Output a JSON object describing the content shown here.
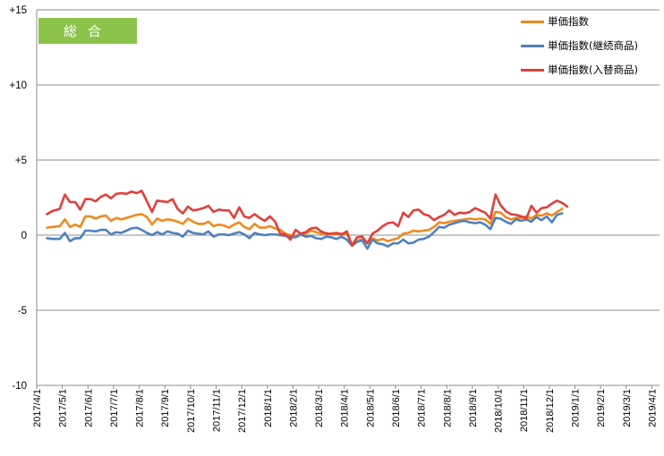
{
  "badge": {
    "text": "総合"
  },
  "chart_data": {
    "type": "line",
    "ylim": [
      -10,
      15
    ],
    "yticks": [
      {
        "value": 15,
        "label": "+15"
      },
      {
        "value": 10,
        "label": "+10"
      },
      {
        "value": 5,
        "label": "+5"
      },
      {
        "value": 0,
        "label": "0"
      },
      {
        "value": -5,
        "label": "-5"
      },
      {
        "value": -10,
        "label": "-10"
      }
    ],
    "grid": "horizontal",
    "legend_position": "top-right",
    "x_labels": [
      "2017/4/1",
      "2017/5/1",
      "2017/6/1",
      "2017/7/1",
      "2017/8/1",
      "2017/9/1",
      "2017/10/1",
      "2017/11/1",
      "2017/12/1",
      "2018/1/1",
      "2018/2/1",
      "2018/3/1",
      "2018/4/1",
      "2018/5/1",
      "2018/6/1",
      "2018/7/1",
      "2018/8/1",
      "2018/9/1",
      "2018/10/1",
      "2018/11/1",
      "2018/12/1",
      "2019/1/1",
      "2019/2/1",
      "2019/3/1",
      "2019/4/1"
    ],
    "x_range": [
      0,
      24.3
    ],
    "series": [
      {
        "name": "単価指数",
        "color": "#f08a1d",
        "points": [
          [
            0.4,
            0.5
          ],
          [
            0.6,
            0.55
          ],
          [
            0.9,
            0.6
          ],
          [
            1.1,
            1.05
          ],
          [
            1.3,
            0.55
          ],
          [
            1.5,
            0.7
          ],
          [
            1.7,
            0.55
          ],
          [
            1.9,
            1.25
          ],
          [
            2.1,
            1.25
          ],
          [
            2.3,
            1.1
          ],
          [
            2.5,
            1.25
          ],
          [
            2.7,
            1.3
          ],
          [
            2.9,
            0.95
          ],
          [
            3.1,
            1.15
          ],
          [
            3.3,
            1.05
          ],
          [
            3.5,
            1.15
          ],
          [
            3.7,
            1.25
          ],
          [
            3.9,
            1.35
          ],
          [
            4.1,
            1.4
          ],
          [
            4.3,
            1.2
          ],
          [
            4.5,
            0.7
          ],
          [
            4.7,
            1.1
          ],
          [
            4.9,
            0.95
          ],
          [
            5.1,
            1.05
          ],
          [
            5.3,
            1.0
          ],
          [
            5.5,
            0.9
          ],
          [
            5.7,
            0.75
          ],
          [
            5.9,
            1.1
          ],
          [
            6.1,
            0.9
          ],
          [
            6.3,
            0.75
          ],
          [
            6.5,
            0.75
          ],
          [
            6.7,
            0.9
          ],
          [
            6.9,
            0.6
          ],
          [
            7.1,
            0.7
          ],
          [
            7.3,
            0.65
          ],
          [
            7.5,
            0.5
          ],
          [
            7.7,
            0.7
          ],
          [
            7.9,
            0.85
          ],
          [
            8.1,
            0.55
          ],
          [
            8.3,
            0.4
          ],
          [
            8.5,
            0.75
          ],
          [
            8.7,
            0.5
          ],
          [
            8.9,
            0.5
          ],
          [
            9.1,
            0.6
          ],
          [
            9.3,
            0.45
          ],
          [
            9.5,
            0.35
          ],
          [
            9.7,
            0.1
          ],
          [
            9.9,
            0.0
          ],
          [
            10.1,
            -0.05
          ],
          [
            10.3,
            0.05
          ],
          [
            10.5,
            0.1
          ],
          [
            10.7,
            0.3
          ],
          [
            10.9,
            0.2
          ],
          [
            11.1,
            0.1
          ],
          [
            11.3,
            0.15
          ],
          [
            11.5,
            0.05
          ],
          [
            11.7,
            0.1
          ],
          [
            11.9,
            0.1
          ],
          [
            12.1,
            0.1
          ],
          [
            12.3,
            -0.6
          ],
          [
            12.5,
            -0.35
          ],
          [
            12.7,
            -0.3
          ],
          [
            12.9,
            -0.55
          ],
          [
            13.1,
            -0.2
          ],
          [
            13.3,
            -0.35
          ],
          [
            13.5,
            -0.25
          ],
          [
            13.7,
            -0.4
          ],
          [
            13.9,
            -0.3
          ],
          [
            14.1,
            -0.2
          ],
          [
            14.3,
            0.1
          ],
          [
            14.5,
            0.15
          ],
          [
            14.7,
            0.3
          ],
          [
            14.9,
            0.25
          ],
          [
            15.1,
            0.3
          ],
          [
            15.3,
            0.35
          ],
          [
            15.5,
            0.55
          ],
          [
            15.7,
            0.85
          ],
          [
            15.9,
            0.8
          ],
          [
            16.1,
            0.9
          ],
          [
            16.3,
            0.95
          ],
          [
            16.5,
            1.0
          ],
          [
            16.7,
            1.05
          ],
          [
            16.9,
            1.1
          ],
          [
            17.1,
            1.05
          ],
          [
            17.3,
            1.1
          ],
          [
            17.5,
            1.05
          ],
          [
            17.7,
            0.75
          ],
          [
            17.9,
            1.55
          ],
          [
            18.1,
            1.5
          ],
          [
            18.3,
            1.2
          ],
          [
            18.5,
            1.05
          ],
          [
            18.7,
            1.15
          ],
          [
            18.9,
            1.15
          ],
          [
            19.1,
            1.25
          ],
          [
            19.3,
            1.1
          ],
          [
            19.5,
            1.35
          ],
          [
            19.7,
            1.3
          ],
          [
            19.9,
            1.45
          ],
          [
            20.1,
            1.3
          ],
          [
            20.3,
            1.55
          ],
          [
            20.5,
            1.75
          ]
        ]
      },
      {
        "name": "単価指数(継続商品)",
        "color": "#4f81bd",
        "points": [
          [
            0.4,
            -0.2
          ],
          [
            0.6,
            -0.25
          ],
          [
            0.9,
            -0.25
          ],
          [
            1.1,
            0.15
          ],
          [
            1.3,
            -0.4
          ],
          [
            1.5,
            -0.2
          ],
          [
            1.7,
            -0.2
          ],
          [
            1.9,
            0.3
          ],
          [
            2.1,
            0.3
          ],
          [
            2.3,
            0.25
          ],
          [
            2.5,
            0.35
          ],
          [
            2.7,
            0.35
          ],
          [
            2.9,
            0.05
          ],
          [
            3.1,
            0.2
          ],
          [
            3.3,
            0.15
          ],
          [
            3.5,
            0.3
          ],
          [
            3.7,
            0.45
          ],
          [
            3.9,
            0.5
          ],
          [
            4.1,
            0.35
          ],
          [
            4.3,
            0.15
          ],
          [
            4.5,
            0.0
          ],
          [
            4.7,
            0.2
          ],
          [
            4.9,
            0.05
          ],
          [
            5.1,
            0.25
          ],
          [
            5.3,
            0.15
          ],
          [
            5.5,
            0.1
          ],
          [
            5.7,
            -0.1
          ],
          [
            5.9,
            0.3
          ],
          [
            6.1,
            0.15
          ],
          [
            6.3,
            0.1
          ],
          [
            6.5,
            0.05
          ],
          [
            6.7,
            0.25
          ],
          [
            6.9,
            -0.1
          ],
          [
            7.1,
            0.05
          ],
          [
            7.3,
            0.05
          ],
          [
            7.5,
            0.0
          ],
          [
            7.7,
            0.1
          ],
          [
            7.9,
            0.2
          ],
          [
            8.1,
            0.05
          ],
          [
            8.3,
            -0.2
          ],
          [
            8.5,
            0.15
          ],
          [
            8.7,
            0.05
          ],
          [
            8.9,
            0.0
          ],
          [
            9.1,
            0.05
          ],
          [
            9.3,
            0.05
          ],
          [
            9.5,
            0.0
          ],
          [
            9.7,
            -0.05
          ],
          [
            9.9,
            -0.1
          ],
          [
            10.1,
            -0.15
          ],
          [
            10.3,
            0.05
          ],
          [
            10.5,
            -0.1
          ],
          [
            10.7,
            -0.05
          ],
          [
            10.9,
            -0.2
          ],
          [
            11.1,
            -0.25
          ],
          [
            11.3,
            -0.1
          ],
          [
            11.5,
            -0.15
          ],
          [
            11.7,
            -0.25
          ],
          [
            11.9,
            -0.1
          ],
          [
            12.1,
            -0.3
          ],
          [
            12.3,
            -0.7
          ],
          [
            12.5,
            -0.45
          ],
          [
            12.7,
            -0.35
          ],
          [
            12.9,
            -0.9
          ],
          [
            13.1,
            -0.3
          ],
          [
            13.3,
            -0.55
          ],
          [
            13.5,
            -0.6
          ],
          [
            13.7,
            -0.75
          ],
          [
            13.9,
            -0.55
          ],
          [
            14.1,
            -0.55
          ],
          [
            14.3,
            -0.3
          ],
          [
            14.5,
            -0.55
          ],
          [
            14.7,
            -0.5
          ],
          [
            14.9,
            -0.3
          ],
          [
            15.1,
            -0.25
          ],
          [
            15.3,
            -0.1
          ],
          [
            15.5,
            0.2
          ],
          [
            15.7,
            0.55
          ],
          [
            15.9,
            0.5
          ],
          [
            16.1,
            0.7
          ],
          [
            16.3,
            0.8
          ],
          [
            16.5,
            0.9
          ],
          [
            16.7,
            0.95
          ],
          [
            16.9,
            0.85
          ],
          [
            17.1,
            0.8
          ],
          [
            17.3,
            0.85
          ],
          [
            17.5,
            0.7
          ],
          [
            17.7,
            0.4
          ],
          [
            17.9,
            1.15
          ],
          [
            18.1,
            1.1
          ],
          [
            18.3,
            0.9
          ],
          [
            18.5,
            0.75
          ],
          [
            18.7,
            1.05
          ],
          [
            18.9,
            0.95
          ],
          [
            19.1,
            1.05
          ],
          [
            19.3,
            0.9
          ],
          [
            19.5,
            1.2
          ],
          [
            19.7,
            1.0
          ],
          [
            19.9,
            1.25
          ],
          [
            20.1,
            0.85
          ],
          [
            20.3,
            1.35
          ],
          [
            20.5,
            1.45
          ]
        ]
      },
      {
        "name": "単価指数(入替商品)",
        "color": "#e0403a",
        "points": [
          [
            0.4,
            1.4
          ],
          [
            0.6,
            1.6
          ],
          [
            0.9,
            1.75
          ],
          [
            1.1,
            2.7
          ],
          [
            1.3,
            2.2
          ],
          [
            1.5,
            2.2
          ],
          [
            1.7,
            1.7
          ],
          [
            1.9,
            2.4
          ],
          [
            2.1,
            2.4
          ],
          [
            2.3,
            2.25
          ],
          [
            2.5,
            2.55
          ],
          [
            2.7,
            2.7
          ],
          [
            2.9,
            2.45
          ],
          [
            3.1,
            2.75
          ],
          [
            3.3,
            2.8
          ],
          [
            3.5,
            2.75
          ],
          [
            3.7,
            2.9
          ],
          [
            3.9,
            2.8
          ],
          [
            4.1,
            2.95
          ],
          [
            4.3,
            2.25
          ],
          [
            4.5,
            1.55
          ],
          [
            4.7,
            2.3
          ],
          [
            4.9,
            2.25
          ],
          [
            5.1,
            2.2
          ],
          [
            5.3,
            2.4
          ],
          [
            5.5,
            1.75
          ],
          [
            5.7,
            1.45
          ],
          [
            5.9,
            1.9
          ],
          [
            6.1,
            1.65
          ],
          [
            6.3,
            1.7
          ],
          [
            6.5,
            1.8
          ],
          [
            6.7,
            1.95
          ],
          [
            6.9,
            1.55
          ],
          [
            7.1,
            1.7
          ],
          [
            7.3,
            1.65
          ],
          [
            7.5,
            1.65
          ],
          [
            7.7,
            1.15
          ],
          [
            7.9,
            1.85
          ],
          [
            8.1,
            1.25
          ],
          [
            8.3,
            1.15
          ],
          [
            8.5,
            1.4
          ],
          [
            8.7,
            1.15
          ],
          [
            8.9,
            0.95
          ],
          [
            9.1,
            1.25
          ],
          [
            9.3,
            0.9
          ],
          [
            9.5,
            0.1
          ],
          [
            9.7,
            0.05
          ],
          [
            9.9,
            -0.3
          ],
          [
            10.1,
            0.35
          ],
          [
            10.3,
            0.1
          ],
          [
            10.5,
            0.2
          ],
          [
            10.7,
            0.45
          ],
          [
            10.9,
            0.5
          ],
          [
            11.1,
            0.25
          ],
          [
            11.3,
            0.1
          ],
          [
            11.5,
            0.1
          ],
          [
            11.7,
            0.15
          ],
          [
            11.9,
            0.05
          ],
          [
            12.1,
            0.25
          ],
          [
            12.3,
            -0.7
          ],
          [
            12.5,
            -0.15
          ],
          [
            12.7,
            -0.1
          ],
          [
            12.9,
            -0.55
          ],
          [
            13.1,
            0.1
          ],
          [
            13.3,
            0.3
          ],
          [
            13.5,
            0.6
          ],
          [
            13.7,
            0.8
          ],
          [
            13.9,
            0.85
          ],
          [
            14.1,
            0.6
          ],
          [
            14.3,
            1.5
          ],
          [
            14.5,
            1.2
          ],
          [
            14.7,
            1.65
          ],
          [
            14.9,
            1.7
          ],
          [
            15.1,
            1.4
          ],
          [
            15.3,
            1.3
          ],
          [
            15.5,
            1.0
          ],
          [
            15.7,
            1.2
          ],
          [
            15.9,
            1.35
          ],
          [
            16.1,
            1.65
          ],
          [
            16.3,
            1.35
          ],
          [
            16.5,
            1.5
          ],
          [
            16.7,
            1.45
          ],
          [
            16.9,
            1.55
          ],
          [
            17.1,
            1.8
          ],
          [
            17.3,
            1.65
          ],
          [
            17.5,
            1.5
          ],
          [
            17.7,
            1.1
          ],
          [
            17.9,
            2.7
          ],
          [
            18.1,
            2.0
          ],
          [
            18.3,
            1.6
          ],
          [
            18.5,
            1.4
          ],
          [
            18.7,
            1.35
          ],
          [
            18.9,
            1.25
          ],
          [
            19.1,
            1.1
          ],
          [
            19.3,
            1.95
          ],
          [
            19.5,
            1.5
          ],
          [
            19.7,
            1.8
          ],
          [
            19.9,
            1.85
          ],
          [
            20.1,
            2.1
          ],
          [
            20.3,
            2.3
          ],
          [
            20.5,
            2.15
          ],
          [
            20.7,
            1.9
          ]
        ]
      }
    ]
  }
}
